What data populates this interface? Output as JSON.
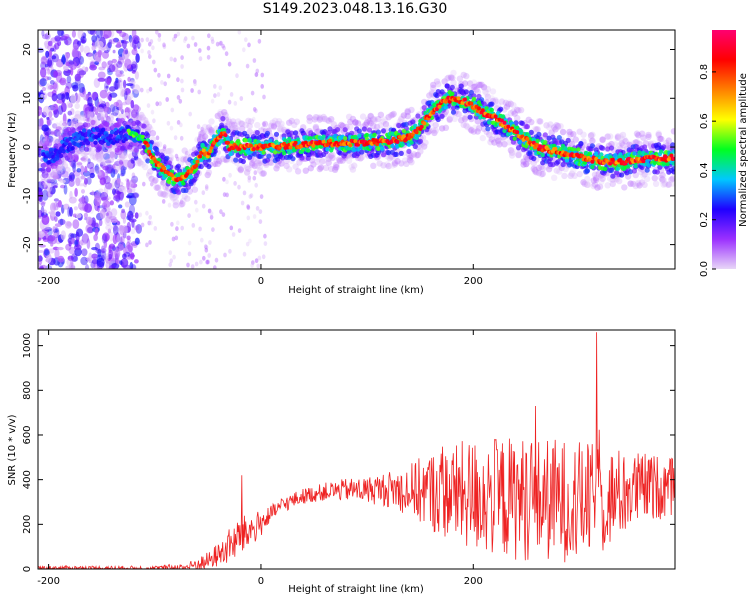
{
  "title": "S149.2023.048.13.16.G30",
  "chart_data": [
    {
      "type": "heatmap",
      "xlabel": "Height of straight line (km)",
      "ylabel": "Frequency (Hz)",
      "xlim": [
        -210,
        390
      ],
      "ylim": [
        -25,
        24
      ],
      "x_ticks": [
        -200,
        0,
        200
      ],
      "y_ticks": [
        -20,
        -10,
        0,
        10,
        20
      ],
      "grid": false,
      "colorbar": {
        "label": "Normalized spectral amplitude",
        "range": [
          0.0,
          0.97
        ],
        "ticks": [
          0.0,
          0.2,
          0.4,
          0.6,
          0.8
        ],
        "colors": [
          "#e8d6f7",
          "#9b30ff",
          "#1f00ff",
          "#00c8ff",
          "#00ff20",
          "#ffff00",
          "#ff8000",
          "#ff0000",
          "#ff0070"
        ]
      },
      "ridge": {
        "x": [
          -205,
          -195,
          -180,
          -160,
          -140,
          -125,
          -110,
          -100,
          -90,
          -80,
          -70,
          -60,
          -55,
          -50,
          -45,
          -40,
          -35,
          -30,
          -25,
          -20,
          0,
          20,
          40,
          60,
          80,
          100,
          120,
          140,
          150,
          160,
          170,
          180,
          190,
          200,
          210,
          220,
          240,
          260,
          280,
          300,
          320,
          340,
          360,
          390
        ],
        "y": [
          -2,
          -1.5,
          1,
          2.5,
          2,
          3,
          1.5,
          -3,
          -5,
          -7,
          -6,
          -3,
          -1,
          -1.5,
          1,
          2,
          3,
          0,
          0,
          0,
          0,
          0.2,
          0.5,
          0.8,
          0.8,
          1,
          1.2,
          2,
          4,
          7,
          9,
          10,
          9.5,
          8.5,
          7,
          6,
          3,
          0,
          -1,
          -2,
          -3,
          -3,
          -2.5,
          -2.2
        ]
      }
    },
    {
      "type": "line",
      "xlabel": "Height of straight line (km)",
      "ylabel": "SNR (10 * v/v)",
      "xlim": [
        -210,
        390
      ],
      "ylim": [
        0,
        1070
      ],
      "x_ticks": [
        -200,
        0,
        200
      ],
      "y_ticks": [
        0,
        200,
        400,
        600,
        800,
        1000
      ],
      "grid": false,
      "color": "#ee2222",
      "envelope": {
        "x": [
          -210,
          -150,
          -100,
          -70,
          -50,
          -40,
          -30,
          -20,
          -10,
          0,
          10,
          20,
          30,
          40,
          60,
          80,
          100,
          120,
          140,
          160,
          180,
          200,
          220,
          240,
          260,
          280,
          300,
          320,
          340,
          360,
          390
        ],
        "base": [
          5,
          5,
          5,
          10,
          40,
          70,
          110,
          150,
          180,
          210,
          250,
          290,
          310,
          330,
          350,
          360,
          360,
          365,
          365,
          365,
          360,
          355,
          350,
          345,
          340,
          335,
          330,
          330,
          360,
          380,
          380
        ],
        "amp": [
          10,
          10,
          10,
          20,
          40,
          55,
          80,
          90,
          80,
          60,
          40,
          35,
          35,
          35,
          40,
          50,
          60,
          80,
          120,
          180,
          220,
          260,
          270,
          280,
          280,
          280,
          270,
          250,
          200,
          160,
          130
        ]
      },
      "peaks": [
        {
          "x": 316,
          "y": 1060
        },
        {
          "x": -18,
          "y": 420
        }
      ]
    }
  ]
}
